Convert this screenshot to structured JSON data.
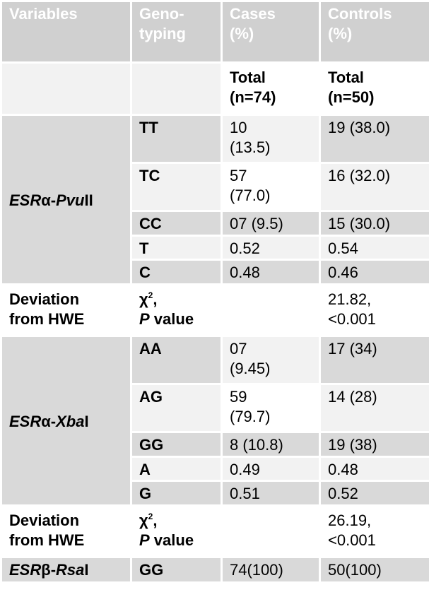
{
  "header": {
    "variables": "Variables",
    "genotyping_1": "Geno-",
    "genotyping_2": "typing",
    "cases_1": "Cases",
    "cases_2": "(%)",
    "controls_1": "Controls",
    "controls_2": "(%)"
  },
  "subheader": {
    "cases_total_1": "Total",
    "cases_total_2": "(n=74)",
    "controls_total_1": "Total",
    "controls_total_2": "(n=50)"
  },
  "pvu": {
    "gene": "ESR",
    "greek": "α",
    "dash": "-",
    "enzyme_italic": "Pvu",
    "enzyme_roman": "II",
    "rows": [
      {
        "genotype": "TT",
        "cases_1": "10",
        "cases_2": "(13.5)",
        "controls": "19 (38.0)"
      },
      {
        "genotype": "TC",
        "cases_1": "57",
        "cases_2": "(77.0)",
        "controls": "16 (32.0)"
      },
      {
        "genotype": "CC",
        "cases": "07 (9.5)",
        "controls": "15 (30.0)"
      },
      {
        "genotype": "T",
        "cases": "0.52",
        "controls": "0.54"
      },
      {
        "genotype": "C",
        "cases": "0.48",
        "controls": "0.46"
      }
    ]
  },
  "hwe1": {
    "label_1": "Deviation",
    "label_2": "from HWE",
    "chi": "χ",
    "chi_sup": "2",
    "comma": ",",
    "p_italic": "P",
    "p_rest": " value",
    "controls_1": "21.82,",
    "controls_2": "<0.001"
  },
  "xba": {
    "gene": "ESR",
    "greek": "α",
    "dash": "-",
    "enzyme_italic": "Xba",
    "enzyme_roman": "I",
    "rows": [
      {
        "genotype": "AA",
        "cases_1": "07",
        "cases_2": "(9.45)",
        "controls": "17 (34)"
      },
      {
        "genotype": "AG",
        "cases_1": "59",
        "cases_2": "(79.7)",
        "controls": "14 (28)"
      },
      {
        "genotype": "GG",
        "cases": "8 (10.8)",
        "controls": "19 (38)"
      },
      {
        "genotype": "A",
        "cases": "0.49",
        "controls": "0.48"
      },
      {
        "genotype": "G",
        "cases": "0.51",
        "controls": "0.52"
      }
    ]
  },
  "hwe2": {
    "label_1": "Deviation",
    "label_2": "from HWE",
    "chi": "χ",
    "chi_sup": "2",
    "comma": ",",
    "p_italic": "P",
    "p_rest": " value",
    "controls_1": "26.19,",
    "controls_2": "<0.001"
  },
  "rsa": {
    "gene": "ESR",
    "greek": "β",
    "dash": "-",
    "enzyme_italic": "Rsa",
    "enzyme_roman": "I",
    "genotype": "GG",
    "cases": "74(100)",
    "controls": "50(100)"
  }
}
